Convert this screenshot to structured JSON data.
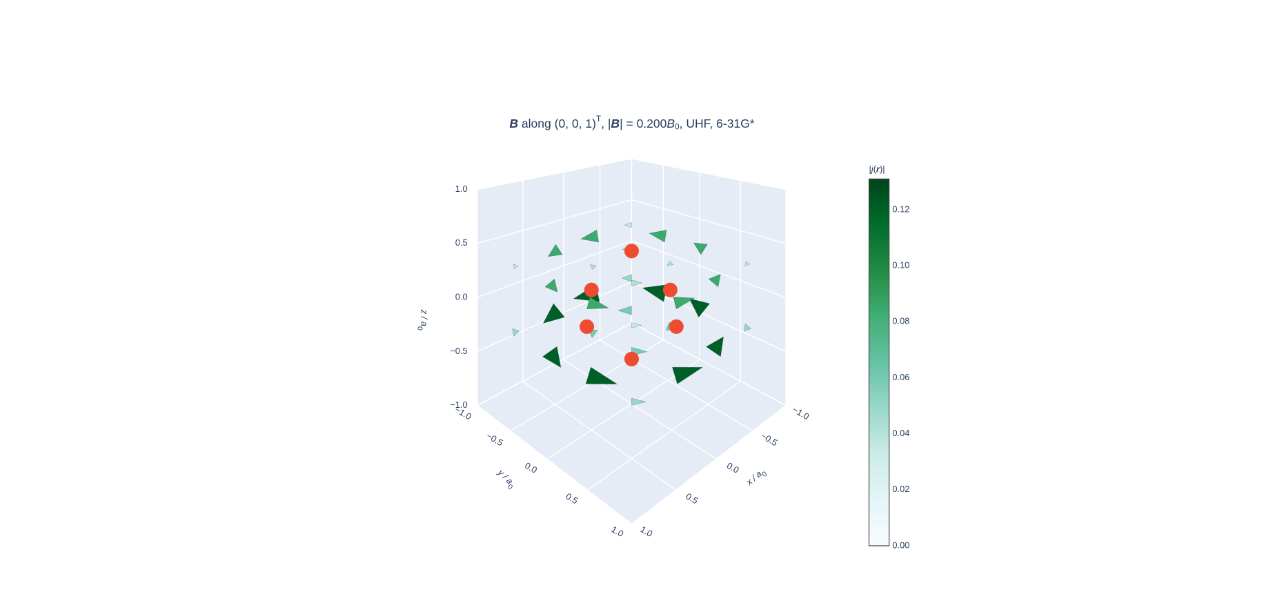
{
  "chart_data": {
    "type": "cone",
    "title_parts": [
      "B",
      " along (0, 0, 1)",
      "T",
      ", |",
      "B",
      "| = 0.200",
      "B",
      "0",
      ", UHF, 6-31G*"
    ],
    "xaxis_title_parts": [
      "x / a",
      "0"
    ],
    "yaxis_title_parts": [
      "y / a",
      "0"
    ],
    "zaxis_title_parts": [
      "z / a",
      "0"
    ],
    "xlim": [
      -1,
      1
    ],
    "ylim": [
      -1,
      1
    ],
    "zlim": [
      -1,
      1
    ],
    "xticks": [
      {
        "value": -1,
        "label": "−1.0"
      },
      {
        "value": -0.5,
        "label": "−0.5"
      },
      {
        "value": 0,
        "label": "0.0"
      },
      {
        "value": 0.5,
        "label": "0.5"
      },
      {
        "value": 1,
        "label": "1.0"
      }
    ],
    "yticks": [
      {
        "value": -1,
        "label": "−1.0"
      },
      {
        "value": -0.5,
        "label": "−0.5"
      },
      {
        "value": 0,
        "label": "0.0"
      },
      {
        "value": 0.5,
        "label": "0.5"
      },
      {
        "value": 1,
        "label": "1.0"
      }
    ],
    "zticks": [
      {
        "value": -1,
        "label": "−1.0"
      },
      {
        "value": -0.5,
        "label": "−0.5"
      },
      {
        "value": 0,
        "label": "0.0"
      },
      {
        "value": 0.5,
        "label": "0.5"
      },
      {
        "value": 1,
        "label": "1.0"
      }
    ],
    "colorbar": {
      "title_parts": [
        "|",
        "j",
        "(",
        "r",
        ")|"
      ],
      "clim": [
        0,
        0.131
      ],
      "colorscale": [
        "#f7fcfd",
        "#e5f5f9",
        "#ccece6",
        "#99d8c9",
        "#66c2a4",
        "#41ae76",
        "#238b45",
        "#006d2c",
        "#00441b"
      ],
      "ticks": [
        {
          "value": 0,
          "label": "0.00"
        },
        {
          "value": 0.02,
          "label": "0.02"
        },
        {
          "value": 0.04,
          "label": "0.04"
        },
        {
          "value": 0.06,
          "label": "0.06"
        },
        {
          "value": 0.08,
          "label": "0.08"
        },
        {
          "value": 0.1,
          "label": "0.10"
        },
        {
          "value": 0.12,
          "label": "0.12"
        }
      ]
    },
    "cones": {
      "x": [
        -0.75,
        -0.25,
        0.25,
        0.75,
        -0.75,
        -0.25,
        0.25,
        0.75,
        -0.75,
        -0.25,
        0.25,
        0.75,
        -0.75,
        -0.25,
        0.25,
        0.75,
        -0.75,
        -0.25,
        0.25,
        0.75,
        -0.75,
        -0.25,
        0.25,
        0.75,
        -0.75,
        -0.25,
        0.25,
        0.75,
        -0.75,
        -0.25,
        0.25,
        0.75
      ],
      "y": [
        -0.75,
        -0.75,
        -0.75,
        -0.75,
        -0.25,
        -0.25,
        -0.25,
        -0.25,
        0.25,
        0.25,
        0.25,
        0.25,
        0.75,
        0.75,
        0.75,
        0.75,
        -0.75,
        -0.75,
        -0.75,
        -0.75,
        -0.25,
        -0.25,
        -0.25,
        -0.25,
        0.25,
        0.25,
        0.25,
        0.25,
        0.75,
        0.75,
        0.75,
        0.75
      ],
      "z": [
        -0.3,
        -0.3,
        -0.3,
        -0.3,
        -0.3,
        -0.3,
        -0.3,
        -0.3,
        -0.3,
        -0.3,
        -0.3,
        -0.3,
        -0.3,
        -0.3,
        -0.3,
        -0.3,
        0.3,
        0.3,
        0.3,
        0.3,
        0.3,
        0.3,
        0.3,
        0.3,
        0.3,
        0.3,
        0.3,
        0.3,
        0.3,
        0.3,
        0.3,
        0.3
      ],
      "u": [
        0.035,
        0.114,
        0.114,
        0.035,
        0.038,
        0.042,
        0.042,
        0.038,
        -0.038,
        -0.042,
        -0.042,
        -0.038,
        -0.035,
        -0.114,
        -0.114,
        -0.035,
        0.025,
        0.08,
        0.08,
        0.025,
        0.027,
        0.029,
        0.029,
        0.027,
        -0.027,
        -0.029,
        -0.029,
        -0.027,
        -0.025,
        -0.08,
        -0.08,
        -0.025
      ],
      "v": [
        -0.035,
        -0.038,
        0.038,
        0.035,
        -0.114,
        -0.042,
        0.042,
        0.114,
        -0.114,
        -0.042,
        0.042,
        0.114,
        -0.035,
        -0.038,
        0.038,
        0.035,
        -0.025,
        -0.027,
        0.027,
        0.025,
        -0.08,
        -0.029,
        0.029,
        0.08,
        -0.08,
        -0.029,
        0.029,
        0.08,
        -0.025,
        -0.027,
        0.027,
        0.025
      ],
      "w": [
        0,
        0,
        0,
        0,
        0,
        0,
        0,
        0,
        0,
        0,
        0,
        0,
        0,
        0,
        0,
        0,
        0,
        0,
        0,
        0,
        0,
        0,
        0,
        0,
        0,
        0,
        0,
        0,
        0,
        0,
        0,
        0
      ]
    },
    "atoms": {
      "color": "#ef4b30",
      "x": [
        0,
        0.26,
        -0.25,
        0.29,
        -0.29,
        0
      ],
      "y": [
        0,
        -0.26,
        0.25,
        -0.29,
        0.29,
        0
      ],
      "z": [
        0.43,
        0.07,
        0.07,
        -0.27,
        -0.27,
        -0.57
      ]
    }
  }
}
